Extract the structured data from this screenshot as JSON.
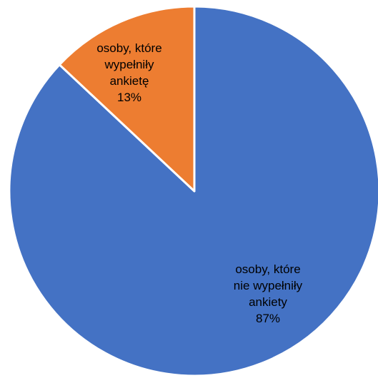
{
  "chart_data": {
    "type": "pie",
    "title": "",
    "categories": [
      "osoby, które nie wypełniły ankiety",
      "osoby, które wypełniły ankietę"
    ],
    "values": [
      87,
      13
    ],
    "colors": [
      "#4472C4",
      "#ED7D31"
    ],
    "label_color": "#000000",
    "slices": [
      {
        "label_lines": [
          "osoby, które",
          "nie wypełniły",
          "ankiety"
        ],
        "percent_label": "87%",
        "value": 87,
        "color": "#4472C4"
      },
      {
        "label_lines": [
          "osoby, które",
          "wypełniły",
          "ankietę"
        ],
        "percent_label": "13%",
        "value": 13,
        "color": "#ED7D31"
      }
    ],
    "legend": "none",
    "start_angle": "12 o'clock",
    "direction": "clockwise"
  }
}
